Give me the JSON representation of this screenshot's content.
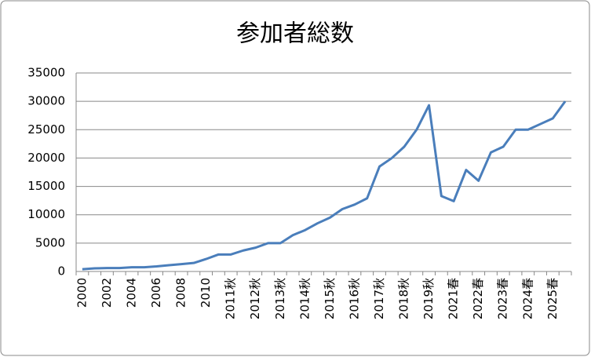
{
  "chart_data": {
    "type": "line",
    "title": "参加者総数",
    "categories": [
      "2000",
      null,
      "2002",
      null,
      "2004",
      null,
      "2006",
      null,
      "2008",
      null,
      "2010",
      null,
      "2011秋",
      null,
      "2012秋",
      null,
      "2013秋",
      null,
      "2014秋",
      null,
      "2015秋",
      null,
      "2016秋",
      null,
      "2017秋",
      null,
      "2018秋",
      null,
      "2019秋",
      null,
      "2021春",
      null,
      "2022春",
      null,
      "2023春",
      null,
      "2024春",
      null,
      "2025春",
      null
    ],
    "series": [
      {
        "name": "参加者総数",
        "color": "#4a7ebb",
        "values": [
          400,
          550,
          600,
          600,
          750,
          750,
          900,
          1100,
          1300,
          1500,
          2200,
          3000,
          3000,
          3700,
          4200,
          5000,
          5000,
          6400,
          7300,
          8500,
          9500,
          11000,
          11800,
          12900,
          18500,
          20000,
          22000,
          25000,
          29300,
          13300,
          12400,
          17900,
          16000,
          21000,
          22000,
          25000,
          25000,
          26000,
          27000,
          30000
        ]
      }
    ],
    "ylim": [
      0,
      35000
    ],
    "yticks": [
      0,
      5000,
      10000,
      15000,
      20000,
      25000,
      30000,
      35000
    ],
    "grid": true
  }
}
